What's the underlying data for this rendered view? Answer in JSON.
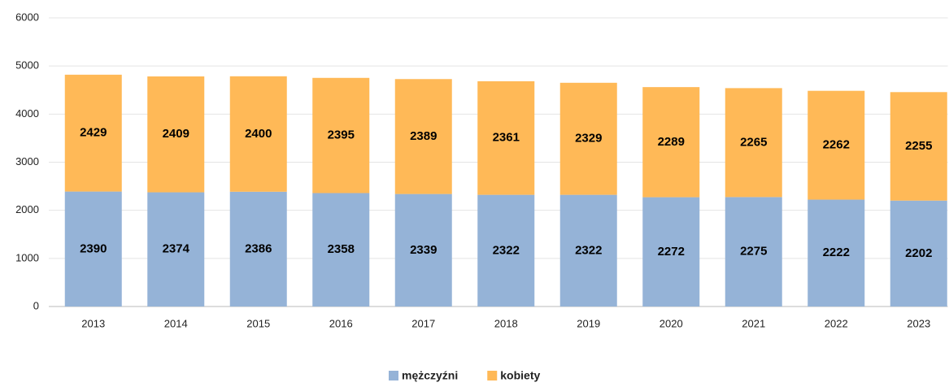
{
  "chart_data": {
    "type": "stacked_bar",
    "categories": [
      "2013",
      "2014",
      "2015",
      "2016",
      "2017",
      "2018",
      "2019",
      "2020",
      "2021",
      "2022",
      "2023"
    ],
    "series": [
      {
        "name": "mężczyźni",
        "color": "#95b3d7",
        "values": [
          2390,
          2374,
          2386,
          2358,
          2339,
          2322,
          2322,
          2272,
          2275,
          2222,
          2202
        ]
      },
      {
        "name": "kobiety",
        "color": "#ffb957",
        "values": [
          2429,
          2409,
          2400,
          2395,
          2389,
          2361,
          2329,
          2289,
          2265,
          2262,
          2255
        ]
      }
    ],
    "ylim": [
      0,
      6000
    ],
    "yticks": [
      0,
      1000,
      2000,
      3000,
      4000,
      5000,
      6000
    ],
    "grid": true,
    "legend": "bottom"
  }
}
